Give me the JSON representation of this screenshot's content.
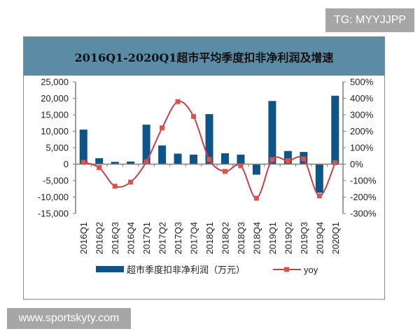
{
  "chart_data": {
    "type": "bar+line",
    "title": "2016Q1-2020Q1超市平均季度扣非净利润及增速",
    "categories": [
      "2016Q1",
      "2016Q2",
      "2016Q3",
      "2016Q4",
      "2017Q1",
      "2017Q2",
      "2017Q3",
      "2017Q4",
      "2018Q1",
      "2018Q2",
      "2018Q3",
      "2018Q4",
      "2019Q1",
      "2019Q2",
      "2019Q3",
      "2019Q4",
      "2020Q1"
    ],
    "series": [
      {
        "name": "超市季度扣非净利润（万元）",
        "type": "bar",
        "axis": "left",
        "color": "#0f5486",
        "values": [
          10500,
          1800,
          700,
          800,
          12000,
          5700,
          3200,
          2900,
          15200,
          3300,
          2900,
          -3200,
          19200,
          4000,
          3700,
          -8700,
          20800
        ]
      },
      {
        "name": "yoy",
        "type": "line",
        "axis": "right",
        "color": "#c9404a",
        "values": [
          11,
          -21,
          -134,
          -109,
          15,
          220,
          380,
          290,
          28,
          -44,
          -10,
          -207,
          28,
          21,
          31,
          -193,
          8
        ]
      }
    ],
    "left_axis": {
      "min": -15000,
      "max": 25000,
      "step": 5000,
      "ticks": [
        "-15,000",
        "-10,000",
        "-5,000",
        "0",
        "5,000",
        "10,000",
        "15,000",
        "20,000",
        "25,000"
      ]
    },
    "right_axis": {
      "min": -300,
      "max": 500,
      "step": 100,
      "unit": "%",
      "ticks": [
        "-300%",
        "-200%",
        "-100%",
        "0%",
        "100%",
        "200%",
        "300%",
        "400%",
        "500%"
      ]
    },
    "grid": false,
    "legend": "bottom"
  },
  "watermarks": {
    "tg": "TG: MYYJJPP",
    "site": "www.sportskyty.com"
  }
}
